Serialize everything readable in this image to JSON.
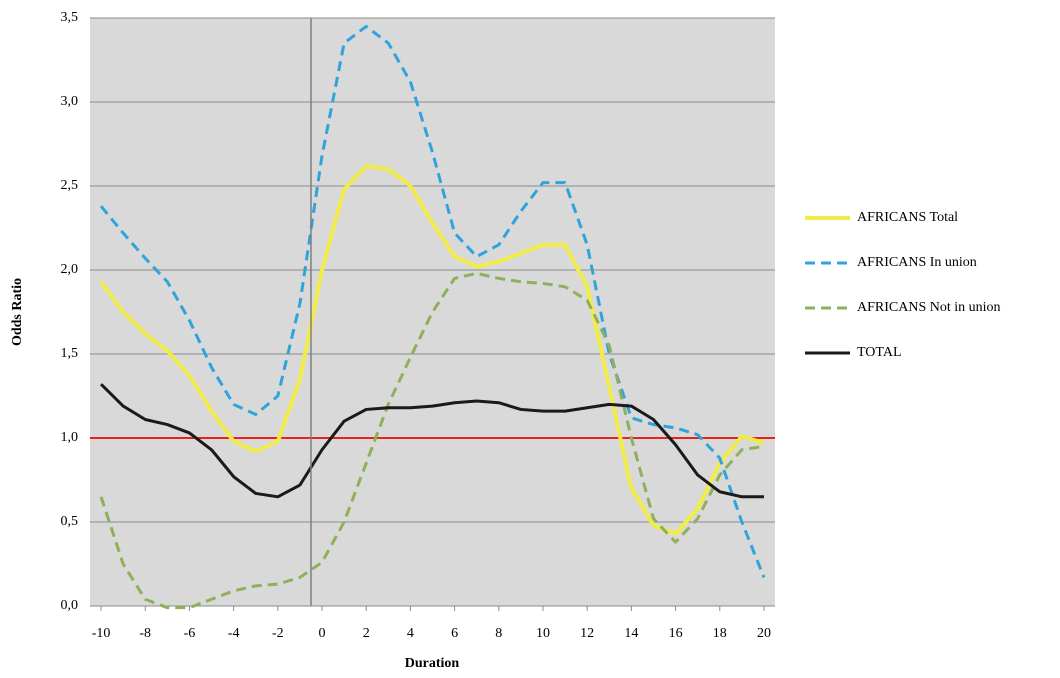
{
  "chart_data": {
    "type": "line",
    "x_label": "Duration",
    "y_label": "Odds Ratio",
    "x": [
      -10,
      -9,
      -8,
      -7,
      -6,
      -5,
      -4,
      -3,
      -2,
      -1,
      0,
      1,
      2,
      3,
      4,
      5,
      6,
      7,
      8,
      9,
      10,
      11,
      12,
      13,
      14,
      15,
      16,
      17,
      18,
      19,
      20
    ],
    "series": [
      {
        "name": "AFRICANS Total",
        "color": "#f2ec4a",
        "dashed": false,
        "width": 4,
        "values": [
          1.93,
          1.75,
          1.62,
          1.52,
          1.37,
          1.16,
          0.98,
          0.92,
          0.98,
          1.35,
          2.0,
          2.48,
          2.62,
          2.6,
          2.5,
          2.28,
          2.08,
          2.02,
          2.05,
          2.1,
          2.15,
          2.15,
          1.9,
          1.3,
          0.7,
          0.48,
          0.43,
          0.58,
          0.85,
          1.01,
          0.97
        ]
      },
      {
        "name": "AFRICANS In union",
        "color": "#2fa4dc",
        "dashed": true,
        "width": 3,
        "values": [
          2.38,
          2.22,
          2.07,
          1.93,
          1.7,
          1.42,
          1.2,
          1.14,
          1.25,
          1.8,
          2.68,
          3.35,
          3.45,
          3.35,
          3.12,
          2.7,
          2.22,
          2.08,
          2.15,
          2.35,
          2.52,
          2.52,
          2.15,
          1.5,
          1.12,
          1.08,
          1.06,
          1.02,
          0.88,
          0.5,
          0.17
        ]
      },
      {
        "name": "AFRICANS Not in union",
        "color": "#8fb05a",
        "dashed": true,
        "width": 3,
        "values": [
          0.65,
          0.25,
          0.04,
          -0.01,
          -0.01,
          0.04,
          0.09,
          0.12,
          0.13,
          0.17,
          0.26,
          0.5,
          0.85,
          1.2,
          1.48,
          1.75,
          1.95,
          1.98,
          1.95,
          1.93,
          1.92,
          1.9,
          1.82,
          1.55,
          1.0,
          0.52,
          0.38,
          0.52,
          0.78,
          0.93,
          0.95
        ]
      },
      {
        "name": "TOTAL",
        "color": "#1a1a1a",
        "dashed": false,
        "width": 3,
        "values": [
          1.32,
          1.19,
          1.11,
          1.08,
          1.03,
          0.93,
          0.77,
          0.67,
          0.65,
          0.72,
          0.93,
          1.1,
          1.17,
          1.18,
          1.18,
          1.19,
          1.21,
          1.22,
          1.21,
          1.17,
          1.16,
          1.16,
          1.18,
          1.2,
          1.19,
          1.11,
          0.96,
          0.78,
          0.68,
          0.65,
          0.65
        ]
      }
    ],
    "xlim": [
      -10.5,
      20.5
    ],
    "ylim": [
      0,
      3.5
    ],
    "xticks": [
      -10,
      -8,
      -6,
      -4,
      -2,
      0,
      2,
      4,
      6,
      8,
      10,
      12,
      14,
      16,
      18,
      20
    ],
    "yticks": [
      {
        "value": 0,
        "label": "0,0"
      },
      {
        "value": 0.5,
        "label": "0,5"
      },
      {
        "value": 1,
        "label": "1,0"
      },
      {
        "value": 1.5,
        "label": "1,5"
      },
      {
        "value": 2,
        "label": "2,0"
      },
      {
        "value": 2.5,
        "label": "2,5"
      },
      {
        "value": 3,
        "label": "3,0"
      },
      {
        "value": 3.5,
        "label": "3,5"
      }
    ],
    "grid": true,
    "reference_y": 1,
    "reference_y_color": "#e8211b",
    "reference_x": -0.5,
    "legend": "right"
  }
}
